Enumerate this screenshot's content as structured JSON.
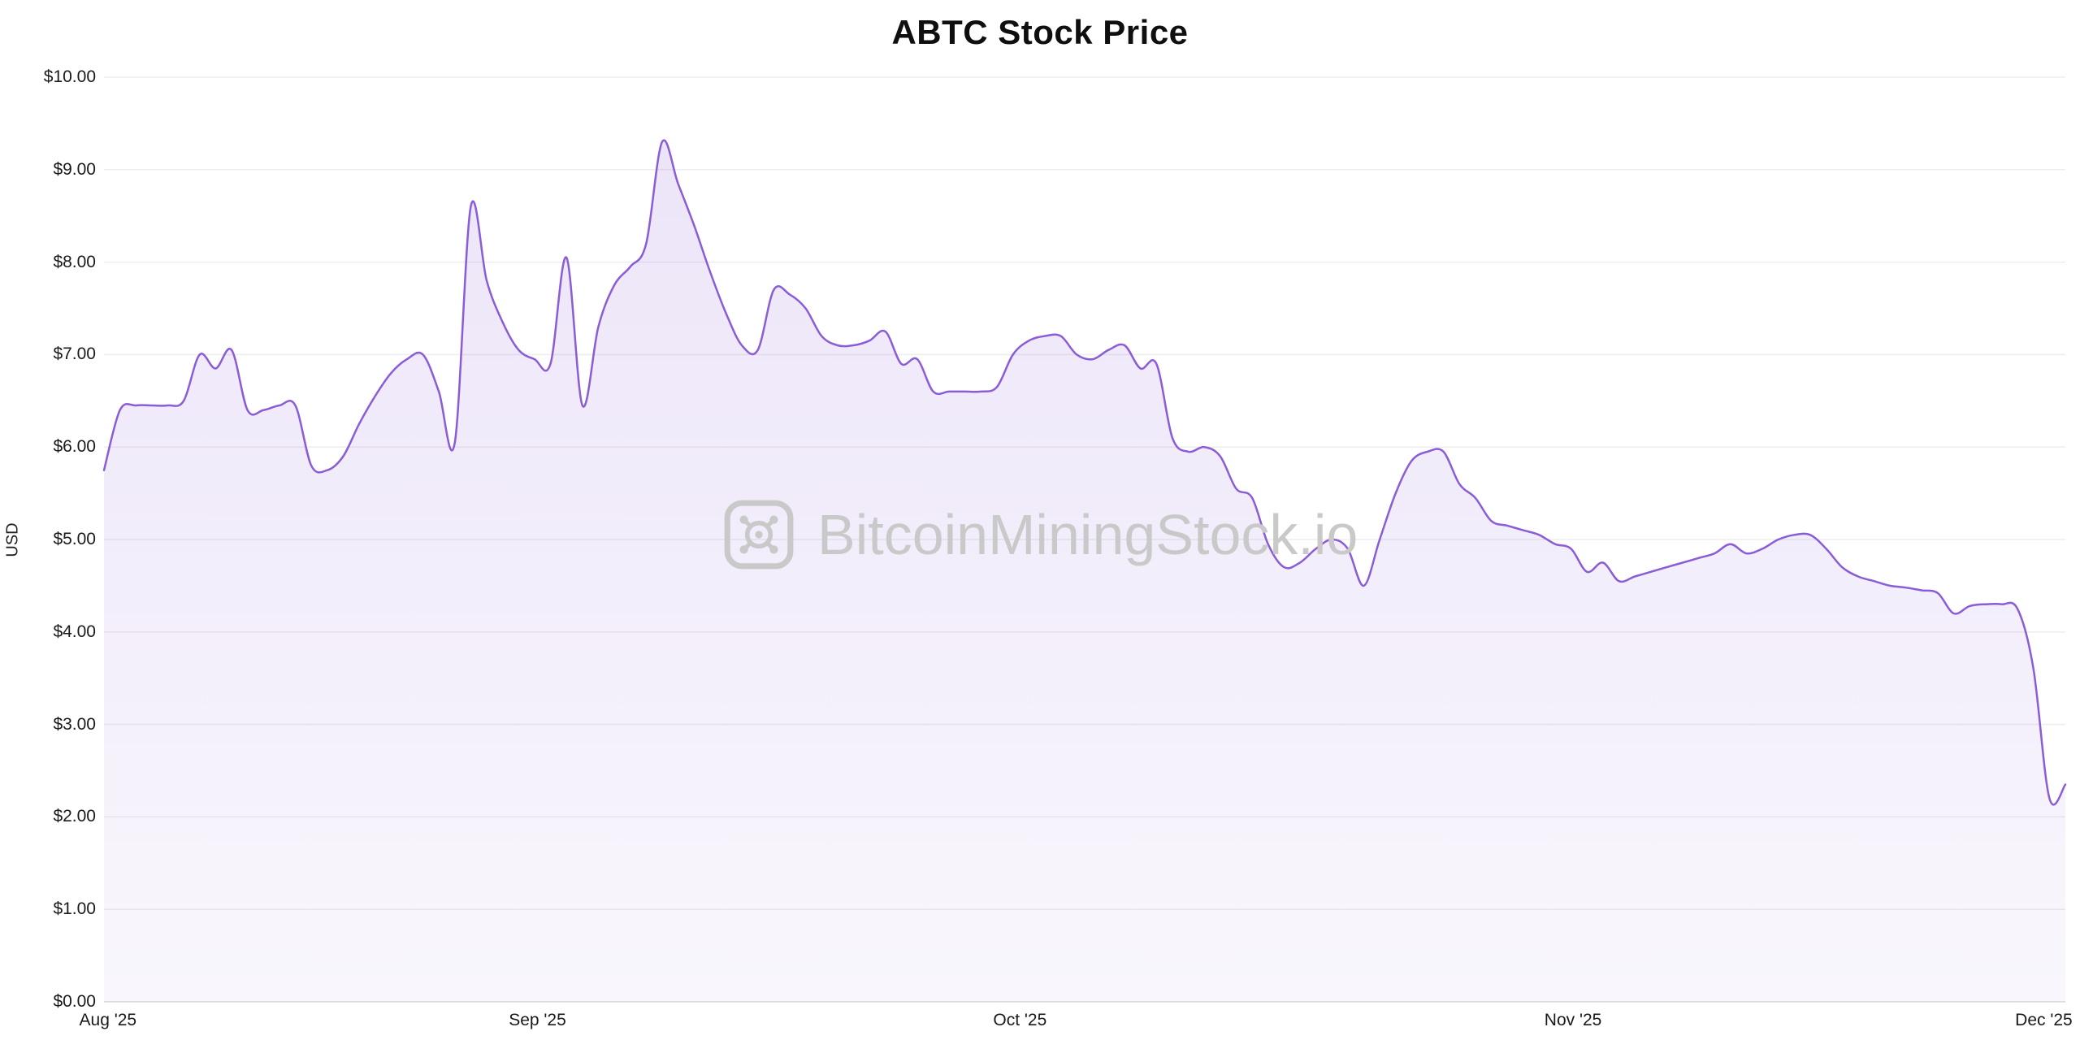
{
  "title": "ABTC Stock Price",
  "watermark": {
    "text": "BitcoinMiningStock.io",
    "icon": "bitcoinminingstock-logo",
    "color": "#c9c9c9"
  },
  "chart_data": {
    "type": "area",
    "title": "ABTC Stock Price",
    "xlabel": "",
    "ylabel": "USD",
    "ylim": [
      0,
      10
    ],
    "grid": "horizontal",
    "legend": "none",
    "line_color": "#8a5cd6",
    "area_fill_top": "rgba(138,92,214,0.16)",
    "area_fill_bottom": "rgba(138,92,214,0.05)",
    "grid_color": "#ededed",
    "axis_color": "#d9d9d9",
    "y_ticks": [
      {
        "value": 0,
        "label": "$0.00"
      },
      {
        "value": 1,
        "label": "$1.00"
      },
      {
        "value": 2,
        "label": "$2.00"
      },
      {
        "value": 3,
        "label": "$3.00"
      },
      {
        "value": 4,
        "label": "$4.00"
      },
      {
        "value": 5,
        "label": "$5.00"
      },
      {
        "value": 6,
        "label": "$6.00"
      },
      {
        "value": 7,
        "label": "$7.00"
      },
      {
        "value": 8,
        "label": "$8.00"
      },
      {
        "value": 9,
        "label": "$9.00"
      },
      {
        "value": 10,
        "label": "$10.00"
      }
    ],
    "x_ticks": [
      {
        "label": "Aug '25",
        "pos": 0.002
      },
      {
        "label": "Sep '25",
        "pos": 0.221
      },
      {
        "label": "Oct '25",
        "pos": 0.467
      },
      {
        "label": "Nov '25",
        "pos": 0.749
      },
      {
        "label": "Dec '25",
        "pos": 0.989
      }
    ],
    "series": [
      {
        "name": "ABTC",
        "unit": "USD",
        "period": "Aug '25 to Dec '25, daily (values estimated from plot)",
        "values": [
          5.75,
          6.4,
          6.45,
          6.45,
          6.45,
          6.5,
          7.0,
          6.85,
          7.05,
          6.4,
          6.4,
          6.45,
          6.45,
          5.8,
          5.75,
          5.9,
          6.25,
          6.55,
          6.8,
          6.95,
          7.0,
          6.6,
          6.05,
          8.6,
          7.8,
          7.35,
          7.05,
          6.95,
          6.9,
          8.05,
          6.45,
          7.3,
          7.75,
          7.95,
          8.2,
          9.3,
          8.85,
          8.4,
          7.9,
          7.45,
          7.1,
          7.05,
          7.7,
          7.65,
          7.5,
          7.2,
          7.1,
          7.1,
          7.15,
          7.25,
          6.9,
          6.95,
          6.6,
          6.6,
          6.6,
          6.6,
          6.65,
          7.0,
          7.15,
          7.2,
          7.2,
          7.0,
          6.95,
          7.05,
          7.1,
          6.85,
          6.9,
          6.1,
          5.95,
          6.0,
          5.9,
          5.55,
          5.45,
          4.95,
          4.7,
          4.75,
          4.9,
          5.0,
          4.9,
          4.5,
          5.0,
          5.5,
          5.85,
          5.95,
          5.95,
          5.6,
          5.45,
          5.2,
          5.15,
          5.1,
          5.05,
          4.95,
          4.9,
          4.65,
          4.75,
          4.55,
          4.6,
          4.65,
          4.7,
          4.75,
          4.8,
          4.85,
          4.95,
          4.85,
          4.9,
          5.0,
          5.05,
          5.05,
          4.9,
          4.7,
          4.6,
          4.55,
          4.5,
          4.48,
          4.45,
          4.42,
          4.2,
          4.28,
          4.3,
          4.3,
          4.25,
          3.6,
          2.2,
          2.35
        ]
      }
    ]
  }
}
